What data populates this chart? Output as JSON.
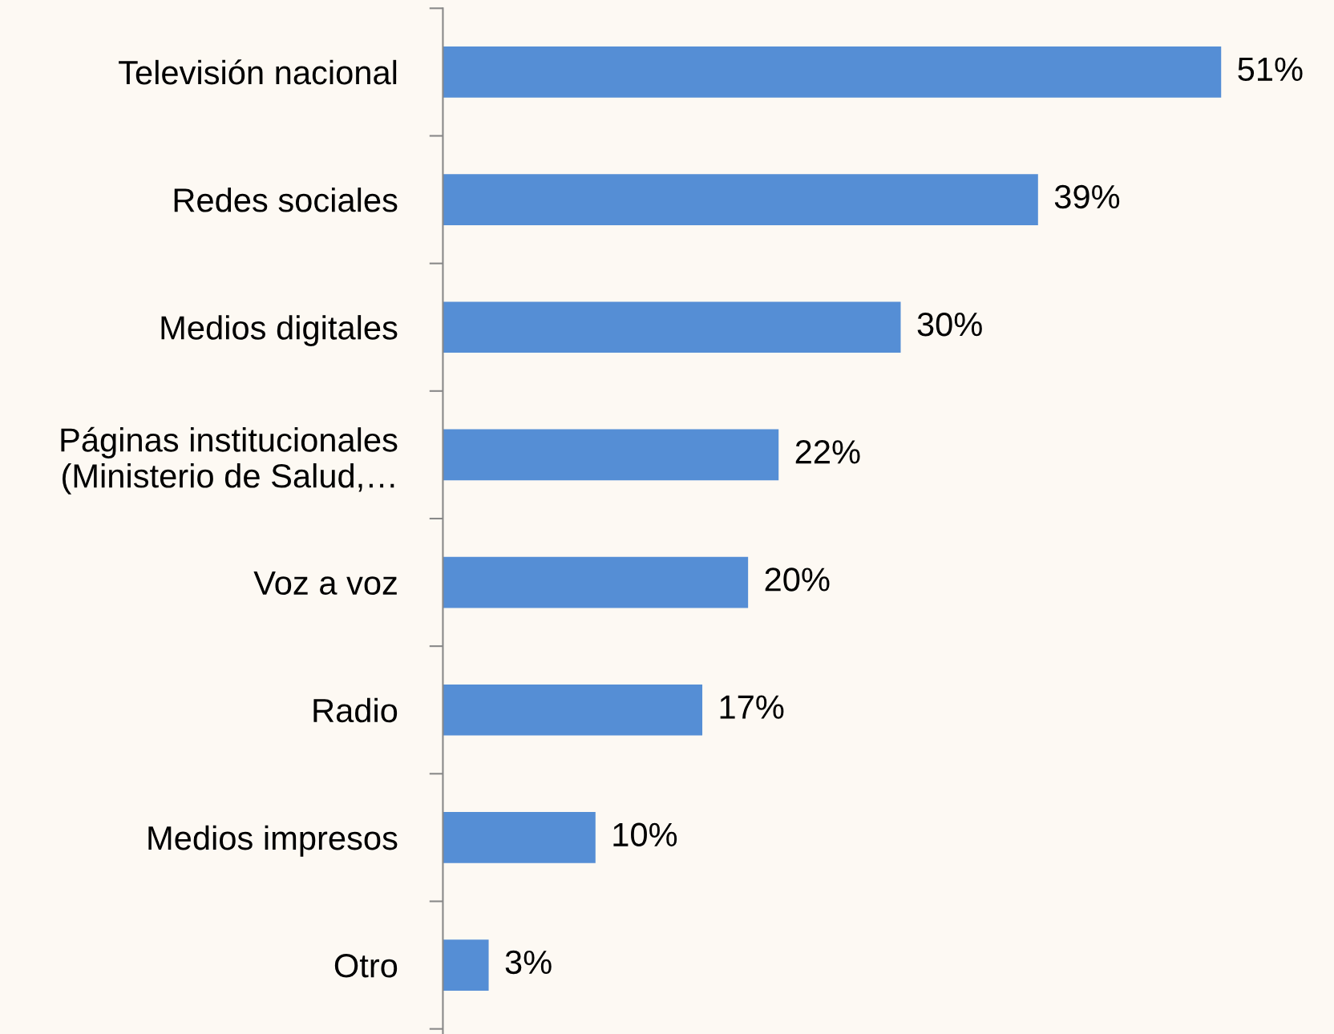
{
  "chart_data": {
    "type": "bar",
    "orientation": "horizontal",
    "categories": [
      "Televisión nacional",
      "Redes sociales",
      "Medios digitales",
      "Páginas institucionales\n(Ministerio de Salud,…",
      "Voz a voz",
      "Radio",
      "Medios impresos",
      "Otro"
    ],
    "values": [
      51,
      39,
      30,
      22,
      20,
      17,
      10,
      3
    ],
    "value_labels": [
      "51%",
      "39%",
      "30%",
      "22%",
      "20%",
      "17%",
      "10%",
      "3%"
    ],
    "color": "#558ed5",
    "grid": false,
    "legend": false
  }
}
